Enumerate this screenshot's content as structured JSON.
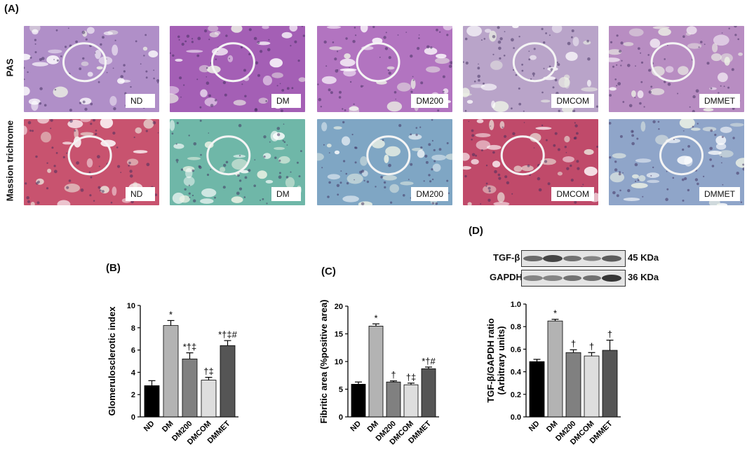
{
  "figure": {
    "panel_labels": {
      "a": "(A)",
      "b": "(B)",
      "c": "(C)",
      "d": "(D)"
    },
    "stains": [
      "PAS",
      "Massion trichrome"
    ],
    "groups": [
      "ND",
      "DM",
      "DM200",
      "DMCOM",
      "DMMET"
    ],
    "stain_colors": {
      "PAS": [
        "#b08fc8",
        "#a45fb5",
        "#b274c0",
        "#b9a4c9",
        "#b88dc2"
      ],
      "Massion trichrome": [
        "#c8536f",
        "#6fb7a8",
        "#7fa6c4",
        "#c04a6a",
        "#8fa5c9"
      ]
    },
    "western_blot": {
      "rows": [
        {
          "name": "TGF-β",
          "size": "45 KDa"
        },
        {
          "name": "GAPDH",
          "size": "36 KDa"
        }
      ]
    }
  },
  "chart_data": [
    {
      "type": "bar",
      "panel": "(B)",
      "categories": [
        "ND",
        "DM",
        "DM200",
        "DMCOM",
        "DMMET"
      ],
      "values": [
        2.8,
        8.2,
        5.2,
        3.3,
        6.4
      ],
      "errors": [
        0.45,
        0.45,
        0.55,
        0.25,
        0.45
      ],
      "annotations": [
        "",
        "*",
        "*†‡",
        "†‡",
        "*†‡#"
      ],
      "bar_colors": [
        "#000000",
        "#b3b3b3",
        "#808080",
        "#dedede",
        "#555555"
      ],
      "ylabel": "Glomerulosclerotic index",
      "ylim": [
        0,
        10
      ],
      "yticks": [
        "0",
        "2",
        "4",
        "6",
        "8",
        "10"
      ]
    },
    {
      "type": "bar",
      "panel": "(C)",
      "categories": [
        "ND",
        "DM",
        "DM200",
        "DMCOM",
        "DMMET"
      ],
      "values": [
        5.9,
        16.4,
        6.3,
        5.8,
        8.7
      ],
      "errors": [
        0.4,
        0.4,
        0.2,
        0.3,
        0.3
      ],
      "annotations": [
        "",
        "*",
        "†",
        "†‡",
        "*†#"
      ],
      "bar_colors": [
        "#000000",
        "#b3b3b3",
        "#808080",
        "#dedede",
        "#555555"
      ],
      "ylabel": "Fibritic area (%positive area)",
      "ylim": [
        0,
        20
      ],
      "yticks": [
        "0",
        "5",
        "10",
        "15",
        "20"
      ]
    },
    {
      "type": "bar",
      "panel": "(D)",
      "categories": [
        "ND",
        "DM",
        "DM200",
        "DMCOM",
        "DMMET"
      ],
      "values": [
        0.49,
        0.85,
        0.57,
        0.54,
        0.59
      ],
      "errors": [
        0.02,
        0.015,
        0.025,
        0.03,
        0.09
      ],
      "annotations": [
        "",
        "*",
        "†",
        "†",
        "†"
      ],
      "bar_colors": [
        "#000000",
        "#b3b3b3",
        "#808080",
        "#dedede",
        "#555555"
      ],
      "ylabel": "TGF-β/GAPDH ratio",
      "ylabel2": "(Arbitrary units)",
      "ylim": [
        0,
        1.0
      ],
      "yticks": [
        "0.0",
        "0.2",
        "0.4",
        "0.6",
        "0.8",
        "1.0"
      ]
    }
  ]
}
